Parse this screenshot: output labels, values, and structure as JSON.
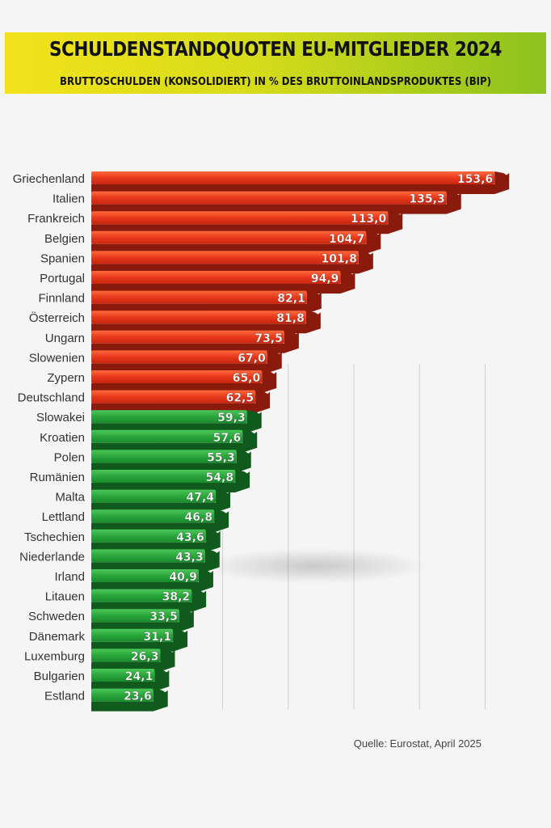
{
  "header": {
    "title": "SCHULDENSTANDQUOTEN EU-MITGLIEDER 2024",
    "subtitle": "BRUTTOSCHULDEN (KONSOLIDIERT) IN % DES BRUTTOINLANDSPRODUKTES (BIP)"
  },
  "source": "Quelle: Eurostat, April 2025",
  "colors": {
    "above": "#e8391c",
    "above_dark": "#8a1a0c",
    "below": "#2aa63c",
    "below_dark": "#0f5a1c",
    "grid": "#cfcfcf"
  },
  "chart_data": {
    "type": "bar",
    "orientation": "horizontal",
    "title": "SCHULDENSTANDQUOTEN EU-MITGLIEDER 2024",
    "subtitle": "BRUTTOSCHULDEN (KONSOLIDIERT) IN % DES BRUTTOINLANDSPRODUKTES (BIP)",
    "threshold": 60,
    "grid": true,
    "xlim": [
      0,
      160
    ],
    "categories": [
      "Griechenland",
      "Italien",
      "Frankreich",
      "Belgien",
      "Spanien",
      "Portugal",
      "Finnland",
      "Österreich",
      "Ungarn",
      "Slowenien",
      "Zypern",
      "Deutschland",
      "Slowakei",
      "Kroatien",
      "Polen",
      "Rumänien",
      "Malta",
      "Lettland",
      "Tschechien",
      "Niederlande",
      "Irland",
      "Litauen",
      "Schweden",
      "Dänemark",
      "Luxemburg",
      "Bulgarien",
      "Estland"
    ],
    "values": [
      153.6,
      135.3,
      113.0,
      104.7,
      101.8,
      94.9,
      82.1,
      81.8,
      73.5,
      67.0,
      65.0,
      62.5,
      59.3,
      57.6,
      55.3,
      54.8,
      47.4,
      46.8,
      43.6,
      43.3,
      40.9,
      38.2,
      33.5,
      31.1,
      26.3,
      24.1,
      23.6
    ],
    "value_labels": [
      "153,6",
      "135,3",
      "113,0",
      "104,7",
      "101,8",
      "94,9",
      "82,1",
      "81,8",
      "73,5",
      "67,0",
      "65,0",
      "62,5",
      "59,3",
      "57,6",
      "55,3",
      "54,8",
      "47,4",
      "46,8",
      "43,6",
      "43,3",
      "40,9",
      "38,2",
      "33,5",
      "31,1",
      "26,3",
      "24,1",
      "23,6"
    ]
  }
}
